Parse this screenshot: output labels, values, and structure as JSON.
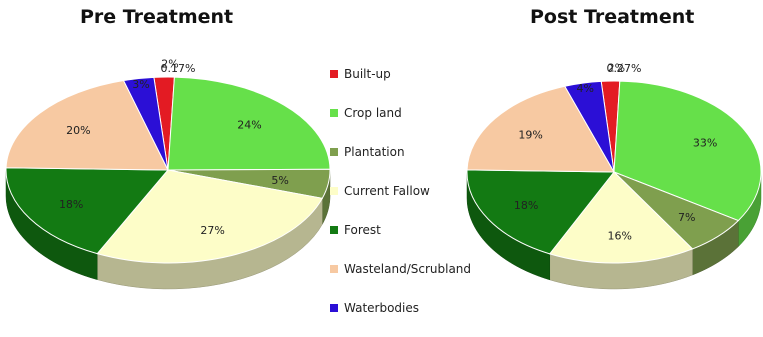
{
  "chart_data": [
    {
      "type": "pie",
      "title": "Pre Treatment",
      "slices": [
        {
          "label": "Built-up",
          "value": 2,
          "display": "2%",
          "color": "#e31b23"
        },
        {
          "label": "Crop land",
          "value": 24,
          "display": "24%",
          "color": "#66e04a"
        },
        {
          "label": "Plantation",
          "value": 5,
          "display": "5%",
          "color": "#7f9f4e"
        },
        {
          "label": "Current Fallow",
          "value": 27,
          "display": "27%",
          "color": "#fdfdc8"
        },
        {
          "label": "Forest",
          "value": 18,
          "display": "18%",
          "color": "#137a13"
        },
        {
          "label": "Wasteland/Scrubland",
          "value": 20,
          "display": "20%",
          "color": "#f7c9a2"
        },
        {
          "label": "Waterbodies",
          "value": 3,
          "display": "3%",
          "color": "#2b0fd6"
        }
      ],
      "annotations": [
        "0.17%"
      ]
    },
    {
      "type": "pie",
      "title": "Post Treatment",
      "slices": [
        {
          "label": "Built-up",
          "value": 2,
          "display": "2%",
          "color": "#e31b23"
        },
        {
          "label": "Crop land",
          "value": 33,
          "display": "33%",
          "color": "#66e04a"
        },
        {
          "label": "Plantation",
          "value": 7,
          "display": "7%",
          "color": "#7f9f4e"
        },
        {
          "label": "Current Fallow",
          "value": 16,
          "display": "16%",
          "color": "#fdfdc8"
        },
        {
          "label": "Forest",
          "value": 18,
          "display": "18%",
          "color": "#137a13"
        },
        {
          "label": "Wasteland/Scrubland",
          "value": 19,
          "display": "19%",
          "color": "#f7c9a2"
        },
        {
          "label": "Waterbodies",
          "value": 4,
          "display": "4%",
          "color": "#2b0fd6"
        }
      ],
      "annotations": [
        "0.27%"
      ]
    }
  ],
  "legend": [
    {
      "label": "Built-up",
      "color": "#e31b23"
    },
    {
      "label": "Crop land",
      "color": "#66e04a"
    },
    {
      "label": "Plantation",
      "color": "#7f9f4e"
    },
    {
      "label": "Current Fallow",
      "color": "#fdfdc8"
    },
    {
      "label": "Forest",
      "color": "#137a13"
    },
    {
      "label": "Wasteland/Scrubland",
      "color": "#f7c9a2"
    },
    {
      "label": "Waterbodies",
      "color": "#2b0fd6"
    }
  ]
}
